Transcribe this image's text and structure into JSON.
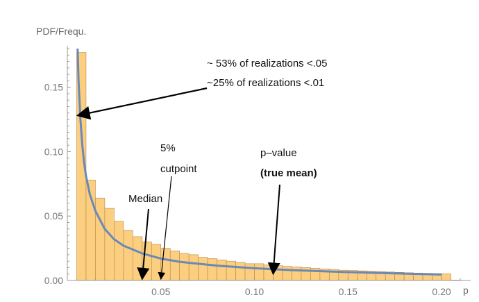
{
  "chart_data": {
    "type": "bar",
    "ylabel": "PDF/Frequ.",
    "xlabel": "p",
    "xlim": [
      0,
      0.21
    ],
    "ylim": [
      0,
      0.18
    ],
    "x_ticks": [
      0.05,
      0.1,
      0.15,
      0.2
    ],
    "x_tick_labels": [
      "0.05",
      "0.10",
      "0.15",
      "0.20"
    ],
    "y_ticks": [
      0.0,
      0.05,
      0.1,
      0.15
    ],
    "y_tick_labels": [
      "0.00",
      "0.05",
      "0.10",
      "0.15"
    ],
    "bin_width": 0.005,
    "bin_start": 0.005,
    "bars": [
      0.177,
      0.078,
      0.064,
      0.056,
      0.046,
      0.039,
      0.034,
      0.03,
      0.028,
      0.025,
      0.023,
      0.021,
      0.02,
      0.018,
      0.017,
      0.016,
      0.015,
      0.014,
      0.013,
      0.013,
      0.012,
      0.0115,
      0.011,
      0.0105,
      0.01,
      0.0095,
      0.009,
      0.0085,
      0.008,
      0.0078,
      0.0075,
      0.0072,
      0.0069,
      0.0066,
      0.0063,
      0.006,
      0.0058,
      0.0056,
      0.0054,
      0.0052,
      0.0003
    ],
    "curve": {
      "x": [
        0.0055,
        0.006,
        0.007,
        0.008,
        0.009,
        0.01,
        0.012,
        0.015,
        0.02,
        0.025,
        0.03,
        0.04,
        0.05,
        0.06,
        0.08,
        0.1,
        0.12,
        0.15,
        0.18,
        0.2
      ],
      "y": [
        0.18,
        0.155,
        0.125,
        0.105,
        0.091,
        0.081,
        0.067,
        0.054,
        0.04,
        0.032,
        0.027,
        0.021,
        0.017,
        0.0145,
        0.0115,
        0.0095,
        0.008,
        0.0065,
        0.0053,
        0.0046
      ]
    },
    "colors": {
      "bar_fill": "#FBCE80",
      "bar_stroke": "#B48B4A",
      "curve": "#6A88B8",
      "axis": "#999999",
      "annotation": "#000000"
    },
    "annotations": [
      {
        "lines": [
          "~ 53% of realizations <.05",
          "~25% of realizations <.01"
        ],
        "bold": [
          false,
          false
        ],
        "target_x": 0.0055,
        "target_y": 0.127
      },
      {
        "lines": [
          "Median"
        ],
        "bold": [
          false
        ],
        "target_x": 0.04,
        "target_y": 0.0
      },
      {
        "lines": [
          "5%",
          "cutpoint"
        ],
        "bold": [
          false,
          false
        ],
        "target_x": 0.05,
        "target_y": 0.0
      },
      {
        "lines": [
          "p–value",
          "(true mean)"
        ],
        "bold": [
          false,
          true
        ],
        "target_x": 0.11,
        "target_y": 0.004
      }
    ]
  }
}
